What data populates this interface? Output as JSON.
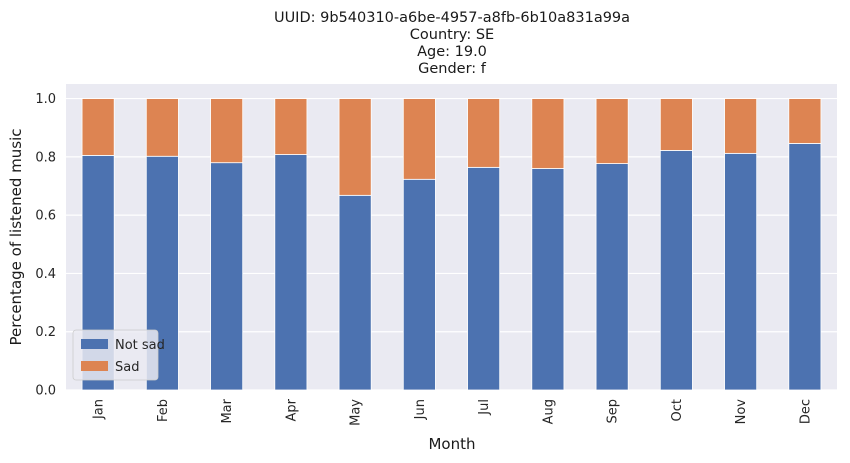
{
  "chart_data": {
    "type": "bar",
    "stacked": true,
    "title_lines": [
      "UUID: 9b540310-a6be-4957-a8fb-6b10a831a99a",
      "Country: SE",
      "Age: 19.0",
      "Gender: f"
    ],
    "xlabel": "Month",
    "ylabel": "Percentage of listened music",
    "categories": [
      "Jan",
      "Feb",
      "Mar",
      "Apr",
      "May",
      "Jun",
      "Jul",
      "Aug",
      "Sep",
      "Oct",
      "Nov",
      "Dec"
    ],
    "series": [
      {
        "name": "Not sad",
        "color": "#4c72b0",
        "values": [
          0.805,
          0.802,
          0.78,
          0.808,
          0.668,
          0.723,
          0.764,
          0.76,
          0.777,
          0.822,
          0.812,
          0.846
        ]
      },
      {
        "name": "Sad",
        "color": "#dd8452",
        "values": [
          0.195,
          0.198,
          0.22,
          0.192,
          0.332,
          0.277,
          0.236,
          0.24,
          0.223,
          0.178,
          0.188,
          0.154
        ]
      }
    ],
    "ylim": [
      0,
      1.05
    ],
    "yticks": [
      "0.0",
      "0.2",
      "0.4",
      "0.6",
      "0.8",
      "1.0"
    ],
    "ytick_values": [
      0,
      0.2,
      0.4,
      0.6,
      0.8,
      1.0
    ],
    "grid": true,
    "legend_position": "lower-left",
    "background": "#eaeaf2"
  }
}
